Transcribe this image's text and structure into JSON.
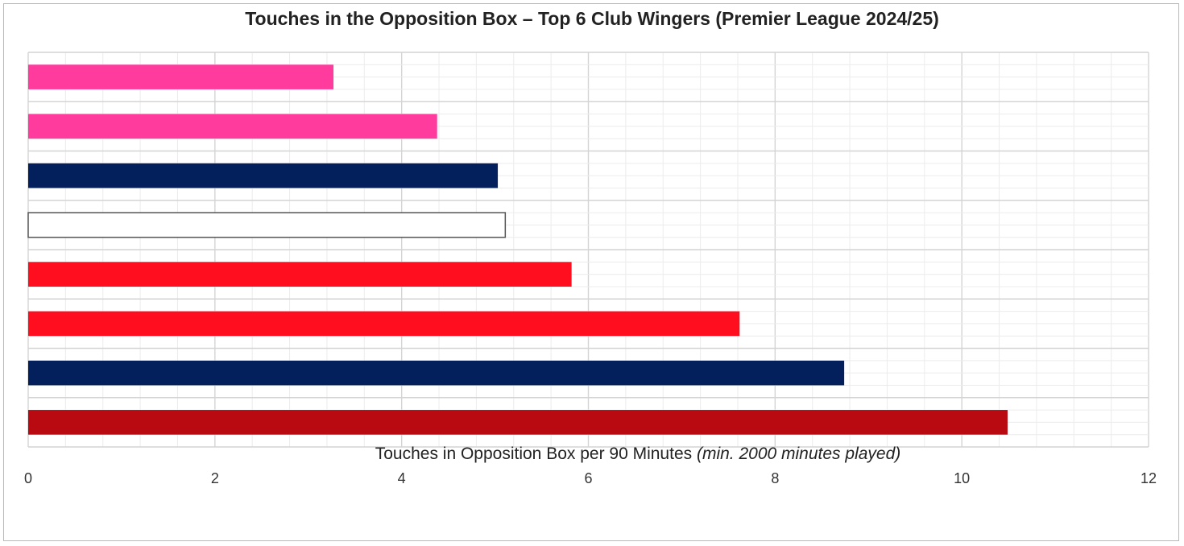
{
  "chart_data": {
    "type": "bar",
    "orientation": "horizontal",
    "title": "Touches in the Opposition Box – Top 6 Club Wingers (Premier League 2024/25)",
    "xlabel_main": "Touches in Opposition Box per 90 Minutes ",
    "xlabel_note": "(min. 2000 minutes played)",
    "ylabel": "",
    "xlim": [
      0,
      12
    ],
    "xticks": [
      0,
      2,
      4,
      6,
      8,
      10,
      12
    ],
    "grid": true,
    "values": [
      3.27,
      4.38,
      5.03,
      5.11,
      5.82,
      7.62,
      8.74,
      10.49
    ],
    "colors": [
      "#ff3b9d",
      "#ff3b9d",
      "#03205c",
      "#ffffff",
      "#ff0e20",
      "#ff0e20",
      "#03205c",
      "#b80a10"
    ],
    "edge_colors": [
      "none",
      "none",
      "none",
      "#555555",
      "none",
      "none",
      "none",
      "none"
    ]
  }
}
